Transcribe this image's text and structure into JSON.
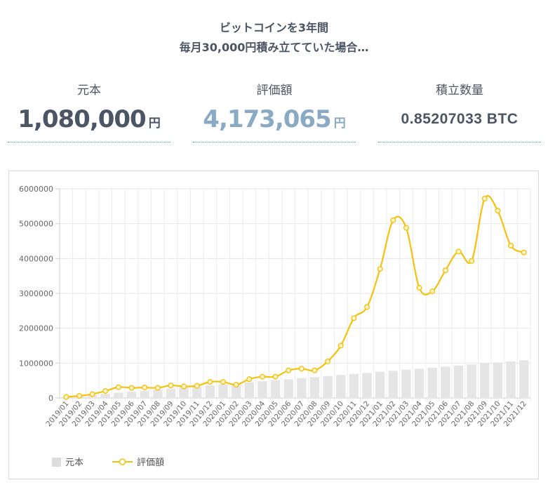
{
  "header": {
    "line1": "ビットコインを3年間",
    "line2": "毎月30,000円積み立てていた場合…"
  },
  "stats": {
    "principal": {
      "label": "元本",
      "value": "1,080,000",
      "unit": "円"
    },
    "valuation": {
      "label": "評価額",
      "value": "4,173,065",
      "unit": "円"
    },
    "quantity": {
      "label": "積立数量",
      "value": "0.85207033 BTC"
    }
  },
  "colors": {
    "text": "#4b5563",
    "valuation_accent": "#8aa9c4",
    "line": "#f6c10e",
    "bar": "#e5e5e5",
    "divider": "#3aa0a8"
  },
  "legend": {
    "principal": "元本",
    "valuation": "評価額"
  },
  "chart_data": {
    "type": "bar",
    "ylim": [
      0,
      6000000
    ],
    "yticks": [
      0,
      1000000,
      2000000,
      3000000,
      4000000,
      5000000,
      6000000
    ],
    "grid": true,
    "legend_position": "bottom-left",
    "categories": [
      "2019/01",
      "2019/02",
      "2019/03",
      "2019/04",
      "2019/05",
      "2019/06",
      "2019/07",
      "2019/08",
      "2019/09",
      "2019/10",
      "2019/11",
      "2019/12",
      "2020/01",
      "2020/02",
      "2020/03",
      "2020/04",
      "2020/05",
      "2020/06",
      "2020/07",
      "2020/08",
      "2020/09",
      "2020/10",
      "2020/11",
      "2020/12",
      "2021/01",
      "2021/02",
      "2021/03",
      "2021/04",
      "2021/05",
      "2021/06",
      "2021/07",
      "2021/08",
      "2021/09",
      "2021/10",
      "2021/11",
      "2021/12"
    ],
    "series": [
      {
        "name": "元本",
        "type": "bar",
        "values": [
          30000,
          60000,
          90000,
          120000,
          150000,
          180000,
          210000,
          240000,
          270000,
          300000,
          330000,
          360000,
          390000,
          420000,
          450000,
          480000,
          510000,
          540000,
          570000,
          600000,
          630000,
          660000,
          690000,
          720000,
          750000,
          780000,
          810000,
          840000,
          870000,
          900000,
          930000,
          960000,
          990000,
          1020000,
          1050000,
          1080000
        ]
      },
      {
        "name": "評価額",
        "type": "line",
        "values": [
          30000,
          60000,
          110000,
          200000,
          310000,
          290000,
          300000,
          290000,
          360000,
          330000,
          350000,
          460000,
          460000,
          380000,
          540000,
          610000,
          610000,
          790000,
          840000,
          790000,
          1050000,
          1500000,
          2290000,
          2610000,
          3700000,
          5100000,
          4880000,
          3160000,
          3060000,
          3660000,
          4200000,
          3930000,
          5720000,
          5370000,
          4370000,
          4173065
        ]
      }
    ]
  }
}
